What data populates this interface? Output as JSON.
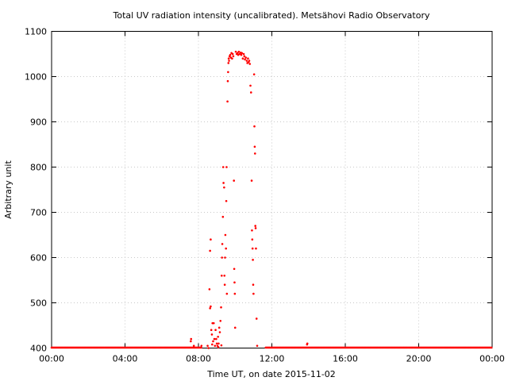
{
  "chart_data": {
    "type": "scatter",
    "title": "Total UV radiation intensity (uncalibrated). Metsähovi Radio Observatory",
    "xlabel": "Time UT, on date 2015-11-02",
    "ylabel": "Arbitrary unit",
    "xlim": [
      "00:00",
      "24:00"
    ],
    "ylim": [
      400,
      1100
    ],
    "x_ticks": [
      "00:00",
      "04:00",
      "08:00",
      "12:00",
      "16:00",
      "20:00",
      "00:00"
    ],
    "y_ticks": [
      "400",
      "500",
      "600",
      "700",
      "800",
      "900",
      "1000",
      "1100"
    ],
    "grid": true,
    "marker_color": "#ff0000",
    "series": [
      {
        "baseline": {
          "value": 401,
          "segments": [
            [
              "00:00",
              "08:10"
            ],
            [
              "11:40",
              "24:00"
            ]
          ]
        },
        "points": [
          [
            "07:35",
            415
          ],
          [
            "07:36",
            420
          ],
          [
            "07:45",
            405
          ],
          [
            "08:10",
            405
          ],
          [
            "08:33",
            400
          ],
          [
            "08:36",
            530
          ],
          [
            "08:38",
            615
          ],
          [
            "08:40",
            640
          ],
          [
            "08:38",
            488
          ],
          [
            "08:40",
            492
          ],
          [
            "08:42",
            440
          ],
          [
            "08:44",
            430
          ],
          [
            "08:46",
            455
          ],
          [
            "08:48",
            415
          ],
          [
            "08:50",
            455
          ],
          [
            "08:52",
            420
          ],
          [
            "08:54",
            405
          ],
          [
            "08:56",
            440
          ],
          [
            "08:58",
            420
          ],
          [
            "09:00",
            410
          ],
          [
            "09:02",
            405
          ],
          [
            "09:04",
            425
          ],
          [
            "09:06",
            410
          ],
          [
            "09:08",
            445
          ],
          [
            "09:10",
            435
          ],
          [
            "09:12",
            460
          ],
          [
            "09:14",
            490
          ],
          [
            "09:16",
            560
          ],
          [
            "09:17",
            600
          ],
          [
            "09:18",
            630
          ],
          [
            "09:20",
            690
          ],
          [
            "09:21",
            800
          ],
          [
            "09:22",
            765
          ],
          [
            "09:24",
            755
          ],
          [
            "09:25",
            560
          ],
          [
            "09:26",
            540
          ],
          [
            "09:27",
            600
          ],
          [
            "09:28",
            650
          ],
          [
            "09:30",
            620
          ],
          [
            "09:31",
            725
          ],
          [
            "09:32",
            800
          ],
          [
            "09:33",
            520
          ],
          [
            "09:35",
            945
          ],
          [
            "09:36",
            990
          ],
          [
            "09:37",
            1010
          ],
          [
            "09:38",
            1030
          ],
          [
            "09:39",
            1040
          ],
          [
            "09:40",
            1035
          ],
          [
            "09:42",
            1045
          ],
          [
            "09:44",
            1048
          ],
          [
            "09:46",
            1042
          ],
          [
            "09:48",
            1052
          ],
          [
            "09:50",
            1040
          ],
          [
            "09:52",
            1050
          ],
          [
            "09:54",
            1045
          ],
          [
            "09:56",
            770
          ],
          [
            "09:57",
            575
          ],
          [
            "09:58",
            545
          ],
          [
            "09:59",
            520
          ],
          [
            "10:00",
            445
          ],
          [
            "10:02",
            1055
          ],
          [
            "10:05",
            1050
          ],
          [
            "10:08",
            1052
          ],
          [
            "10:10",
            1048
          ],
          [
            "10:12",
            1055
          ],
          [
            "10:15",
            1050
          ],
          [
            "10:18",
            1053
          ],
          [
            "10:20",
            1048
          ],
          [
            "10:22",
            1052
          ],
          [
            "10:25",
            1040
          ],
          [
            "10:28",
            1050
          ],
          [
            "10:30",
            1045
          ],
          [
            "10:32",
            1038
          ],
          [
            "10:35",
            1042
          ],
          [
            "10:38",
            1035
          ],
          [
            "10:40",
            1030
          ],
          [
            "10:42",
            1040
          ],
          [
            "10:44",
            1032
          ],
          [
            "10:46",
            1035
          ],
          [
            "10:48",
            1028
          ],
          [
            "10:50",
            980
          ],
          [
            "10:52",
            965
          ],
          [
            "10:54",
            770
          ],
          [
            "10:55",
            660
          ],
          [
            "10:56",
            640
          ],
          [
            "10:57",
            620
          ],
          [
            "10:58",
            595
          ],
          [
            "10:59",
            540
          ],
          [
            "11:00",
            520
          ],
          [
            "11:02",
            1005
          ],
          [
            "11:03",
            890
          ],
          [
            "11:04",
            845
          ],
          [
            "11:05",
            830
          ],
          [
            "11:06",
            670
          ],
          [
            "11:07",
            665
          ],
          [
            "11:08",
            620
          ],
          [
            "11:10",
            465
          ],
          [
            "11:12",
            405
          ],
          [
            "08:30",
            405
          ],
          [
            "08:45",
            408
          ],
          [
            "09:05",
            402
          ],
          [
            "09:15",
            406
          ],
          [
            "13:55",
            408
          ],
          [
            "13:56",
            410
          ]
        ]
      }
    ]
  }
}
